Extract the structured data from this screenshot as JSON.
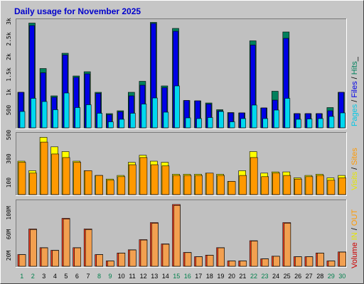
{
  "title": "Daily usage for November 2025",
  "colors": {
    "outer_bg": "#c6c6c6",
    "plot_bg": "#c0c0c0",
    "title": "#0000cc",
    "hits": "#00805c",
    "files": "#0000e6",
    "pages": "#00d8f0",
    "visits": "#ffff00",
    "sites": "#ff9900",
    "kbytes": "#ff4020",
    "weekday_label": "#000000",
    "weekend_label": "#00804c"
  },
  "right_labels": {
    "top": [
      {
        "text": "Pages",
        "color": "#00c8e6"
      },
      {
        "text": " / ",
        "color": "#000000"
      },
      {
        "text": "Files",
        "color": "#0000e6"
      },
      {
        "text": " / ",
        "color": "#000000"
      },
      {
        "text": "Hits",
        "color": "#00805c"
      },
      {
        "text": "_",
        "color": "#000000"
      }
    ],
    "middle": [
      {
        "text": "Visits",
        "color": "#e6e600"
      },
      {
        "text": " / ",
        "color": "#000000"
      },
      {
        "text": "Sites",
        "color": "#ff9900"
      }
    ],
    "bottom": [
      {
        "text": "Volume",
        "color": "#cc0000"
      },
      {
        "text": "  IN",
        "color": "#e6e600"
      },
      {
        "text": " / ",
        "color": "#000000"
      },
      {
        "text": "OUT",
        "color": "#ff9900"
      }
    ]
  },
  "chart_data": [
    {
      "type": "bar",
      "panel": "hits-files-pages",
      "categories": [
        "1",
        "2",
        "3",
        "4",
        "5",
        "6",
        "7",
        "8",
        "9",
        "10",
        "11",
        "12",
        "13",
        "14",
        "15",
        "16",
        "17",
        "18",
        "19",
        "20",
        "21",
        "22",
        "23",
        "24",
        "25",
        "26",
        "27",
        "28",
        "29",
        "30"
      ],
      "ylim": [
        0,
        3000
      ],
      "yticks": [
        {
          "v": 500,
          "label": "500"
        },
        {
          "v": 1000,
          "label": "1k"
        },
        {
          "v": 1500,
          "label": "1.5k"
        },
        {
          "v": 2000,
          "label": "2k"
        },
        {
          "v": 2500,
          "label": "2.5k"
        },
        {
          "v": 3000,
          "label": "3k"
        }
      ],
      "series": [
        {
          "name": "Hits",
          "values": [
            1000,
            2950,
            1670,
            900,
            2100,
            1460,
            1580,
            1000,
            400,
            480,
            1000,
            1310,
            2970,
            1180,
            2800,
            770,
            760,
            700,
            510,
            430,
            420,
            2450,
            560,
            1030,
            2700,
            400,
            400,
            400,
            570,
            1000
          ]
        },
        {
          "name": "Files",
          "values": [
            1000,
            2880,
            1550,
            860,
            2050,
            1420,
            1520,
            970,
            370,
            450,
            900,
            1200,
            2940,
            1130,
            2720,
            770,
            760,
            670,
            480,
            420,
            420,
            2330,
            560,
            780,
            2520,
            400,
            400,
            400,
            480,
            1000
          ]
        },
        {
          "name": "Pages",
          "values": [
            460,
            830,
            740,
            510,
            980,
            570,
            650,
            410,
            170,
            240,
            410,
            670,
            840,
            440,
            1180,
            280,
            260,
            290,
            460,
            170,
            260,
            640,
            260,
            500,
            830,
            240,
            250,
            260,
            320,
            420
          ]
        }
      ]
    },
    {
      "type": "bar",
      "panel": "visits-sites",
      "categories": [
        "1",
        "2",
        "3",
        "4",
        "5",
        "6",
        "7",
        "8",
        "9",
        "10",
        "11",
        "12",
        "13",
        "14",
        "15",
        "16",
        "17",
        "18",
        "19",
        "20",
        "21",
        "22",
        "23",
        "24",
        "25",
        "26",
        "27",
        "28",
        "29",
        "30"
      ],
      "ylim": [
        0,
        500
      ],
      "yticks": [
        {
          "v": 100,
          "label": "100"
        },
        {
          "v": 300,
          "label": "300"
        },
        {
          "v": 500,
          "label": "500"
        }
      ],
      "series": [
        {
          "name": "Visits",
          "values": [
            280,
            200,
            480,
            400,
            360,
            280,
            200,
            160,
            130,
            160,
            270,
            330,
            280,
            270,
            170,
            170,
            170,
            180,
            170,
            110,
            200,
            360,
            180,
            190,
            190,
            140,
            160,
            170,
            140,
            160
          ]
        },
        {
          "name": "Sites",
          "values": [
            270,
            180,
            440,
            340,
            310,
            270,
            200,
            160,
            120,
            150,
            250,
            310,
            250,
            240,
            160,
            160,
            160,
            180,
            160,
            110,
            160,
            310,
            150,
            180,
            160,
            130,
            150,
            160,
            120,
            140
          ]
        }
      ]
    },
    {
      "type": "bar",
      "panel": "volume",
      "categories": [
        "1",
        "2",
        "3",
        "4",
        "5",
        "6",
        "7",
        "8",
        "9",
        "10",
        "11",
        "12",
        "13",
        "14",
        "15",
        "16",
        "17",
        "18",
        "19",
        "20",
        "21",
        "22",
        "23",
        "24",
        "25",
        "26",
        "27",
        "28",
        "29",
        "30"
      ],
      "ylim": [
        0,
        120
      ],
      "yticks": [
        {
          "v": 20,
          "label": "20M"
        },
        {
          "v": 60,
          "label": "60M"
        },
        {
          "v": 100,
          "label": "100M"
        }
      ],
      "series": [
        {
          "name": "Volume",
          "values": [
            22,
            70,
            35,
            30,
            90,
            35,
            70,
            22,
            10,
            25,
            31,
            50,
            82,
            42,
            116,
            26,
            18,
            21,
            35,
            10,
            10,
            48,
            14,
            19,
            82,
            18,
            18,
            25,
            10,
            27
          ]
        }
      ]
    }
  ]
}
